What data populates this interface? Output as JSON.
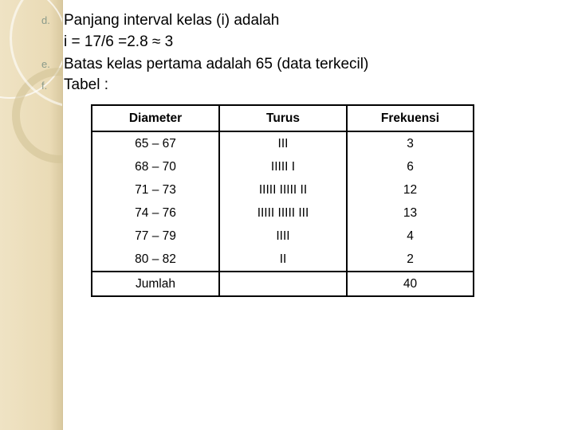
{
  "bullets": [
    "d.",
    "e.",
    "f."
  ],
  "lines": [
    "Panjang interval kelas (i) adalah",
    "i = 17/6 =2.8 ≈ 3",
    "Batas kelas pertama adalah 65 (data terkecil)",
    "Tabel :"
  ],
  "table": {
    "headers": [
      "Diameter",
      "Turus",
      "Frekuensi"
    ],
    "rows": [
      [
        "65 – 67",
        "III",
        "3"
      ],
      [
        "68 – 70",
        "IIIII I",
        "6"
      ],
      [
        "71 – 73",
        "IIIII IIIII II",
        "12"
      ],
      [
        "74 – 76",
        "IIIII IIIII III",
        "13"
      ],
      [
        "77 – 79",
        "IIII",
        "4"
      ],
      [
        "80 – 82",
        "II",
        "2"
      ]
    ],
    "total": [
      "Jumlah",
      "",
      "40"
    ]
  },
  "colors": {
    "sidebar": "#eadbb6",
    "text": "#000000"
  }
}
